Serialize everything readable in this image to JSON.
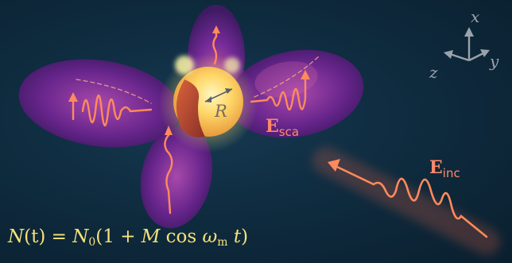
{
  "axes": {
    "x_label": "x",
    "y_label": "y",
    "z_label": "z"
  },
  "sphere": {
    "radius_label": "R"
  },
  "scattered_field": {
    "symbol": "E",
    "subscript": "sca",
    "color": "#ff8a6a"
  },
  "incident_field": {
    "symbol": "E",
    "subscript": "inc",
    "color": "#ff8a6a"
  },
  "formula": {
    "lhs_symbol": "N",
    "lhs_arg": "(t)",
    "equals": " = ",
    "n0_symbol": "N",
    "n0_sub": "0",
    "open": "(1 + ",
    "m_symbol": "M",
    "cos": " cos ",
    "omega_symbol": "ω",
    "omega_sub": "m",
    "t_symbol": " t",
    "close": ")",
    "color": "#f6e27a"
  },
  "colors": {
    "lobe": "#7a2a9c",
    "wave": "#ff8a5c",
    "background": "#0f2c40"
  }
}
